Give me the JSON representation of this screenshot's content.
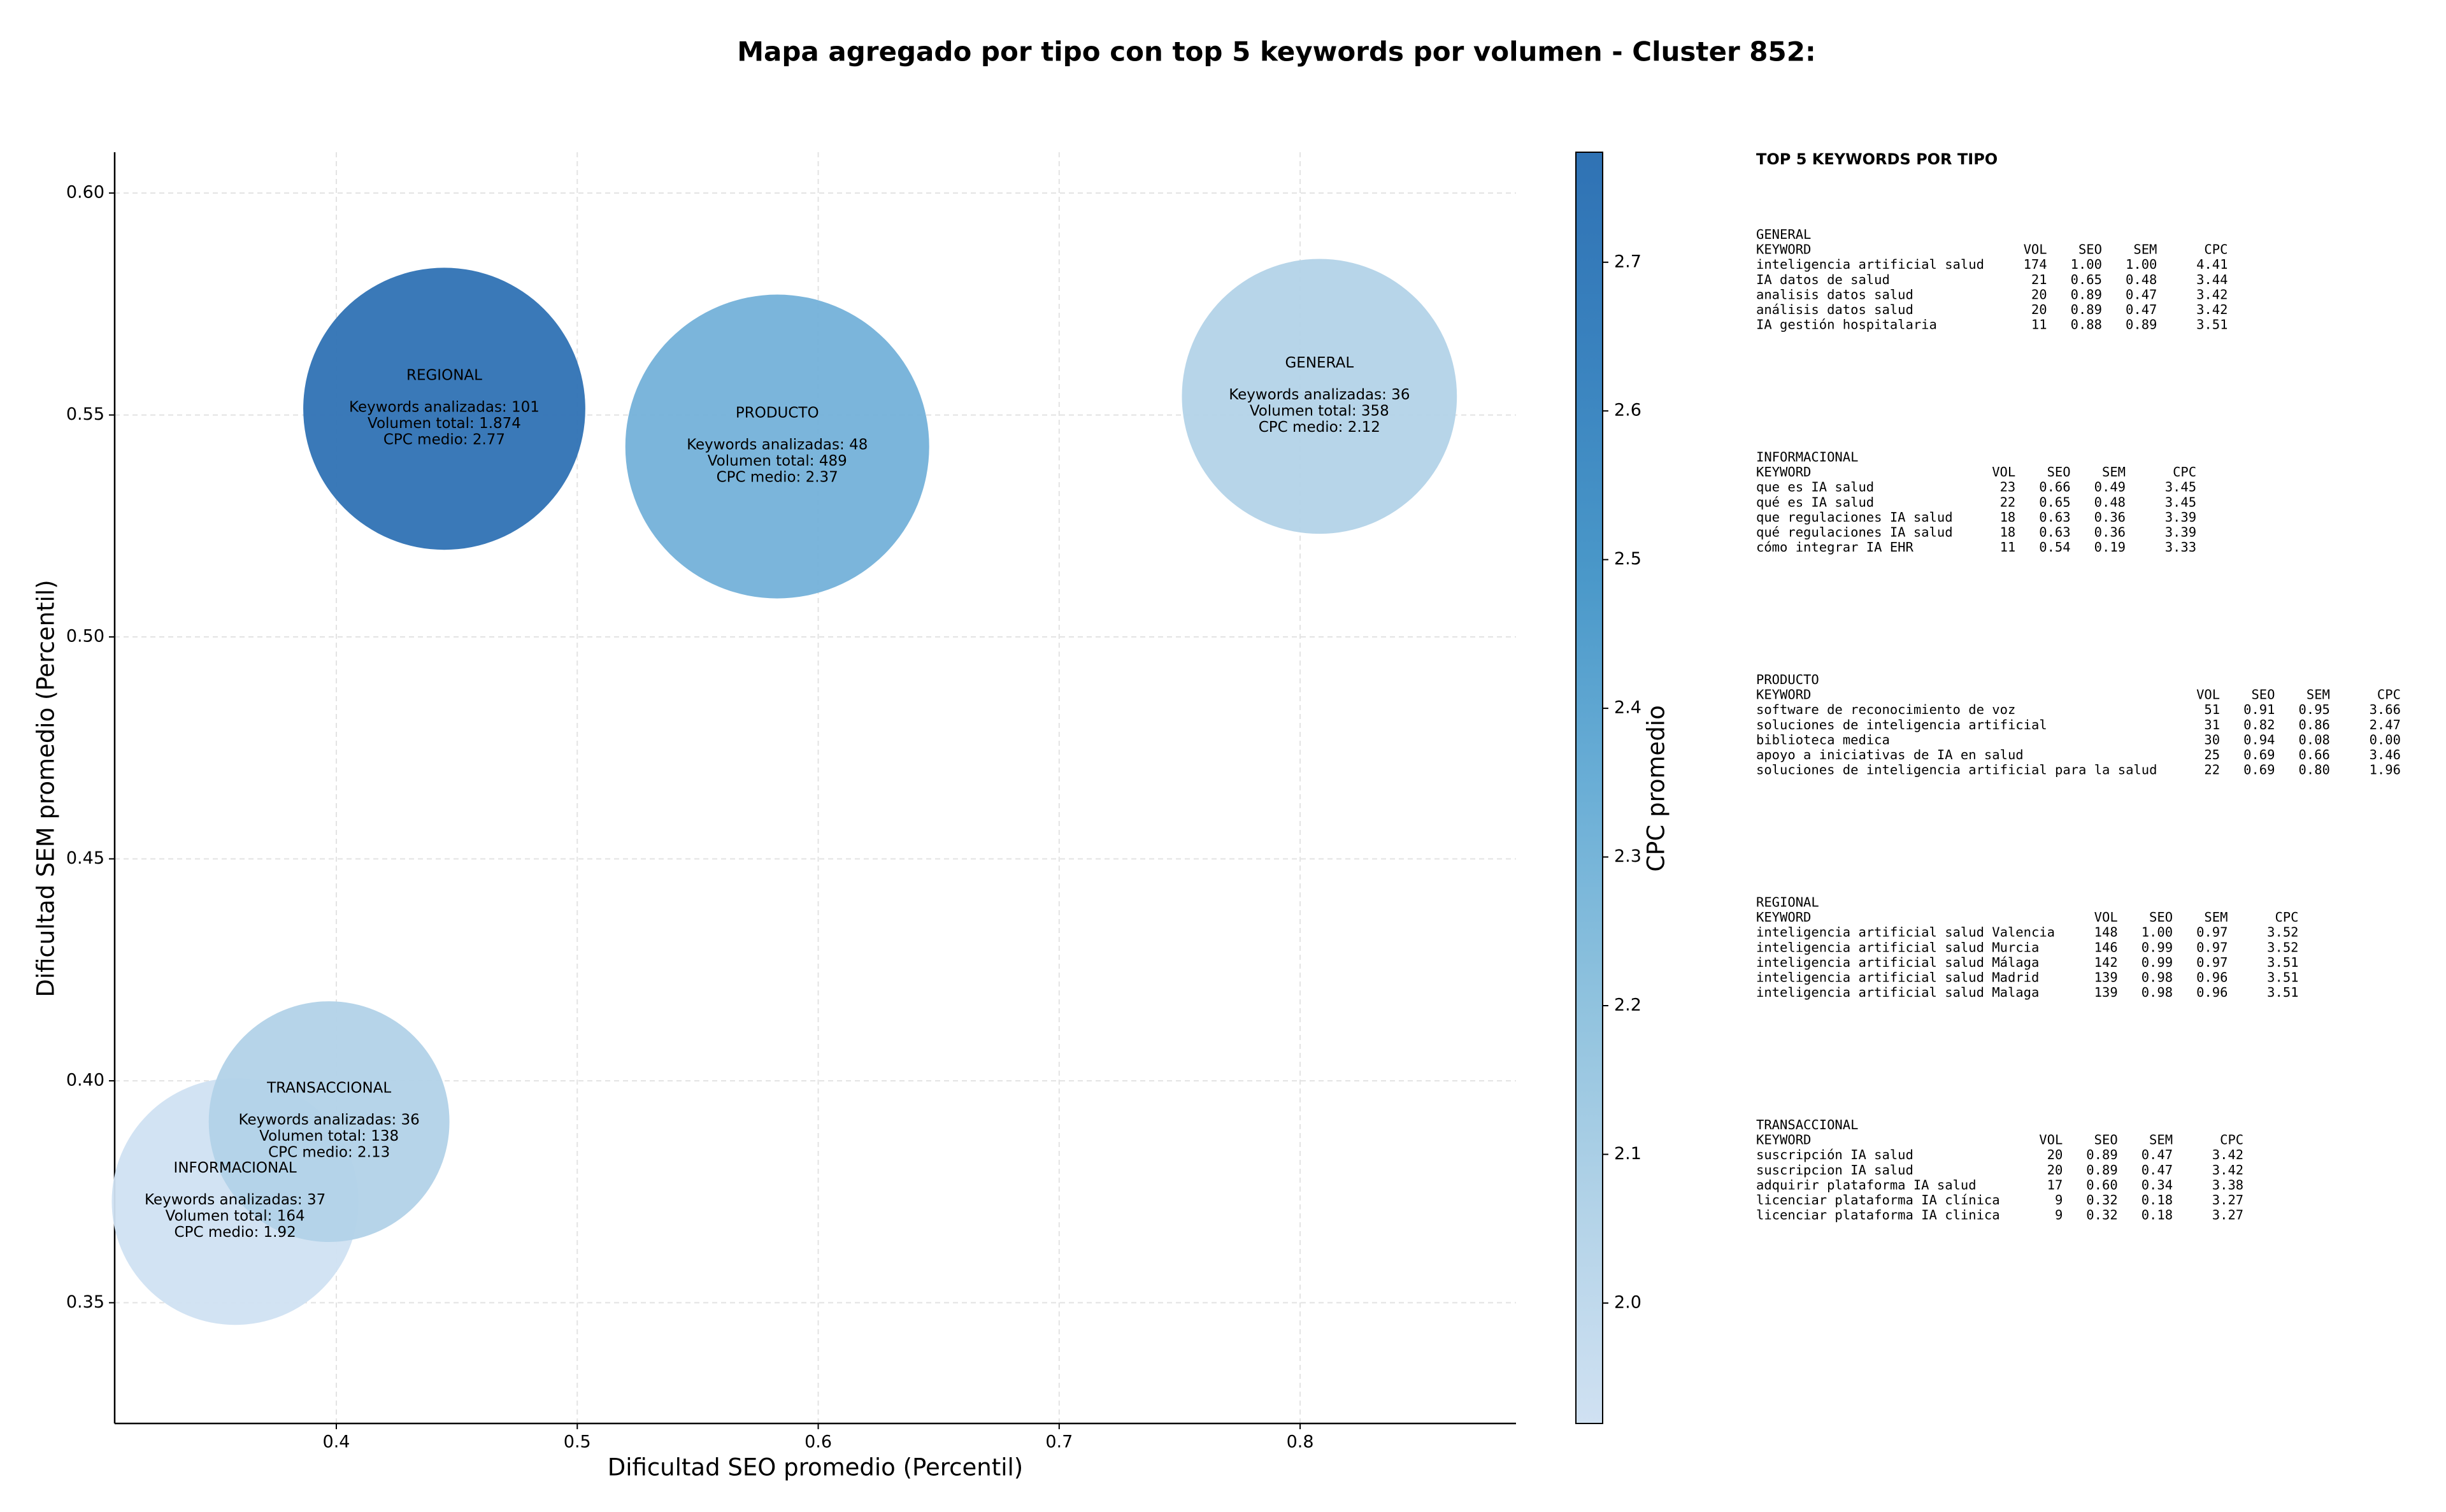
{
  "chart_data": {
    "type": "bubble",
    "title": "Mapa agregado por tipo con top 5 keywords por volumen - Cluster 852:",
    "x_label": "Dificultad SEO promedio (Percentil)",
    "y_label": "Dificultad SEM promedio (Percentil)",
    "xlim": [
      0.308,
      0.8896
    ],
    "ylim": [
      0.3228,
      0.6092
    ],
    "xticks": [
      0.4,
      0.5,
      0.6,
      0.7,
      0.8
    ],
    "yticks": [
      0.35,
      {
        "value": 0.4,
        "label": "0.40"
      },
      0.45,
      {
        "value": 0.5,
        "label": "0.50"
      },
      0.55,
      {
        "value": 0.6,
        "label": "0.60"
      }
    ],
    "grid": true,
    "points": [
      {
        "name": "GENERAL",
        "x": 0.808,
        "y": 0.5542,
        "size": 7700,
        "color": "#b3d3e8",
        "annotation": [
          "Keywords analizadas: 36",
          "Volumen total: 358",
          "CPC medio: 2.12"
        ]
      },
      {
        "name": "INFORMACIONAL",
        "x": 0.358,
        "y": 0.3728,
        "size": 6200,
        "color": "#d0e1f2",
        "annotation": [
          "Keywords analizadas: 37",
          "Volumen total: 164",
          "CPC medio: 1.92"
        ]
      },
      {
        "name": "PRODUCTO",
        "x": 0.583,
        "y": 0.5429,
        "size": 9400,
        "color": "#74b1d9",
        "annotation": [
          "Keywords analizadas: 48",
          "Volumen total: 489",
          "CPC medio: 2.37"
        ]
      },
      {
        "name": "REGIONAL",
        "x": 0.4448,
        "y": 0.5514,
        "size": 8100,
        "color": "#2f72b4",
        "annotation": [
          "Keywords analizadas: 101",
          "Volumen total: 1.874",
          "CPC medio: 2.77"
        ]
      },
      {
        "name": "TRANSACCIONAL",
        "x": 0.397,
        "y": 0.3908,
        "size": 5900,
        "color": "#b2d2e8",
        "annotation": [
          "Keywords analizadas: 36",
          "Volumen total: 138",
          "CPC medio: 2.13"
        ]
      }
    ],
    "colorbar": {
      "label": "CPC promedio",
      "lim": [
        1.919,
        2.774
      ],
      "ticks": [
        {
          "value": 2,
          "label": "2.0"
        },
        2.1,
        2.2,
        2.3,
        2.4,
        2.5,
        2.6,
        2.7
      ],
      "colors": [
        "#d0e1f2",
        "#b3d3e8",
        "#8fc2de",
        "#6aaed6",
        "#4a98c9",
        "#3a83bf",
        "#2f72b4"
      ]
    }
  },
  "panel": {
    "title": "TOP 5 KEYWORDS POR TIPO",
    "header": [
      "KEYWORD",
      "VOL",
      "SEO",
      "SEM",
      "CPC"
    ],
    "sections": [
      {
        "name": "GENERAL",
        "rows": [
          [
            "inteligencia artificial salud",
            "174",
            "1.00",
            "1.00",
            "4.41"
          ],
          [
            "IA datos de salud",
            "21",
            "0.65",
            "0.48",
            "3.44"
          ],
          [
            "analisis datos salud",
            "20",
            "0.89",
            "0.47",
            "3.42"
          ],
          [
            "análisis datos salud",
            "20",
            "0.89",
            "0.47",
            "3.42"
          ],
          [
            "IA gestión hospitalaria",
            "11",
            "0.88",
            "0.89",
            "3.51"
          ]
        ]
      },
      {
        "name": "INFORMACIONAL",
        "rows": [
          [
            "que es IA salud",
            "23",
            "0.66",
            "0.49",
            "3.45"
          ],
          [
            "qué es IA salud",
            "22",
            "0.65",
            "0.48",
            "3.45"
          ],
          [
            "que regulaciones IA salud",
            "18",
            "0.63",
            "0.36",
            "3.39"
          ],
          [
            "qué regulaciones IA salud",
            "18",
            "0.63",
            "0.36",
            "3.39"
          ],
          [
            "cómo integrar IA EHR",
            "11",
            "0.54",
            "0.19",
            "3.33"
          ]
        ]
      },
      {
        "name": "PRODUCTO",
        "rows": [
          [
            "software de reconocimiento de voz",
            "51",
            "0.91",
            "0.95",
            "3.66"
          ],
          [
            "soluciones de inteligencia artificial",
            "31",
            "0.82",
            "0.86",
            "2.47"
          ],
          [
            "biblioteca medica",
            "30",
            "0.94",
            "0.08",
            "0.00"
          ],
          [
            "apoyo a iniciativas de IA en salud",
            "25",
            "0.69",
            "0.66",
            "3.46"
          ],
          [
            "soluciones de inteligencia artificial para la salud",
            "22",
            "0.69",
            "0.80",
            "1.96"
          ]
        ]
      },
      {
        "name": "REGIONAL",
        "rows": [
          [
            "inteligencia artificial salud Valencia",
            "148",
            "1.00",
            "0.97",
            "3.52"
          ],
          [
            "inteligencia artificial salud Murcia",
            "146",
            "0.99",
            "0.97",
            "3.52"
          ],
          [
            "inteligencia artificial salud Málaga",
            "142",
            "0.99",
            "0.97",
            "3.51"
          ],
          [
            "inteligencia artificial salud Madrid",
            "139",
            "0.98",
            "0.96",
            "3.51"
          ],
          [
            "inteligencia artificial salud Malaga",
            "139",
            "0.98",
            "0.96",
            "3.51"
          ]
        ]
      },
      {
        "name": "TRANSACCIONAL",
        "rows": [
          [
            "suscripción IA salud",
            "20",
            "0.89",
            "0.47",
            "3.42"
          ],
          [
            "suscripcion IA salud",
            "20",
            "0.89",
            "0.47",
            "3.42"
          ],
          [
            "adquirir plataforma IA salud",
            "17",
            "0.60",
            "0.34",
            "3.38"
          ],
          [
            "licenciar plataforma IA clínica",
            "9",
            "0.32",
            "0.18",
            "3.27"
          ],
          [
            "licenciar plataforma IA clinica",
            "9",
            "0.32",
            "0.18",
            "3.27"
          ]
        ]
      }
    ]
  }
}
